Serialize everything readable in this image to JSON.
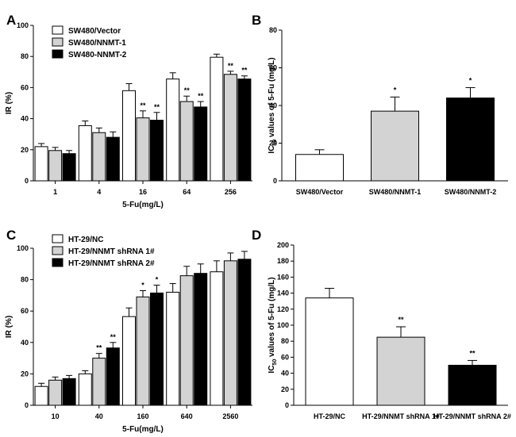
{
  "chart_data": [
    {
      "panel": "A",
      "type": "bar",
      "xlabel": "5-Fu(mg/L)",
      "ylabel": "IR (%)",
      "ylim": [
        0,
        100
      ],
      "yticks": [
        "0",
        "20",
        "40",
        "60",
        "80",
        "100"
      ],
      "categories": [
        "1",
        "4",
        "16",
        "64",
        "256"
      ],
      "legend_position": "top-left",
      "series": [
        {
          "name": "SW480/Vector",
          "color": "#ffffff",
          "values": [
            22,
            35.5,
            58,
            65.5,
            79.5
          ],
          "errors": [
            2,
            3,
            4.5,
            4,
            2
          ],
          "sig": [
            "",
            "",
            "",
            "",
            ""
          ]
        },
        {
          "name": "SW480/NNMT-1",
          "color": "#d3d3d3",
          "values": [
            19.5,
            31,
            40.5,
            51,
            68.5
          ],
          "errors": [
            2,
            3,
            4.5,
            3.5,
            2
          ],
          "sig": [
            "",
            "",
            "**",
            "**",
            "**"
          ]
        },
        {
          "name": "SW480-NNMT-2",
          "color": "#000000",
          "values": [
            17.5,
            28,
            39,
            47.5,
            65.5
          ],
          "errors": [
            2,
            3.5,
            5,
            3.5,
            2
          ],
          "sig": [
            "",
            "",
            "**",
            "**",
            "**"
          ]
        }
      ]
    },
    {
      "panel": "B",
      "type": "bar",
      "xlabel": "",
      "ylabel": "IC50 values of 5-Fu (mg/L)",
      "ylim": [
        0,
        80
      ],
      "yticks": [
        "0",
        "20",
        "40",
        "60",
        "80"
      ],
      "categories": [
        "SW480/Vector",
        "SW480/NNMT-1",
        "SW480/NNMT-2"
      ],
      "colors": [
        "#ffffff",
        "#d3d3d3",
        "#000000"
      ],
      "values": [
        14,
        37,
        44
      ],
      "errors": [
        2.5,
        7.5,
        5.5
      ],
      "sig": [
        "",
        "*",
        "*"
      ]
    },
    {
      "panel": "C",
      "type": "bar",
      "xlabel": "5-Fu(mg/L)",
      "ylabel": "IR (%)",
      "ylim": [
        0,
        100
      ],
      "yticks": [
        "0",
        "20",
        "40",
        "60",
        "80",
        "100"
      ],
      "categories": [
        "10",
        "40",
        "160",
        "640",
        "2560"
      ],
      "legend_position": "top-left",
      "series": [
        {
          "name": "HT-29/NC",
          "color": "#ffffff",
          "values": [
            12,
            20,
            56.5,
            72,
            85
          ],
          "errors": [
            2,
            2,
            5.5,
            5.5,
            7
          ],
          "sig": [
            "",
            "",
            "",
            "",
            ""
          ]
        },
        {
          "name": "HT-29/NNMT shRNA 1#",
          "color": "#d3d3d3",
          "values": [
            16,
            30,
            69,
            82.5,
            92
          ],
          "errors": [
            2,
            3,
            4,
            6,
            5
          ],
          "sig": [
            "",
            "**",
            "*",
            "",
            ""
          ]
        },
        {
          "name": "HT-29/NNMT shRNA 2#",
          "color": "#000000",
          "values": [
            17,
            36.5,
            71.5,
            84,
            93
          ],
          "errors": [
            2,
            3.5,
            5,
            6,
            5
          ],
          "sig": [
            "",
            "**",
            "*",
            "",
            ""
          ]
        }
      ]
    },
    {
      "panel": "D",
      "type": "bar",
      "xlabel": "",
      "ylabel": "IC50 values of 5-Fu (mg/L)",
      "ylim": [
        0,
        200
      ],
      "yticks": [
        "0",
        "20",
        "40",
        "60",
        "80",
        "100",
        "120",
        "140",
        "160",
        "180",
        "200"
      ],
      "categories": [
        "HT-29/NC",
        "HT-29/NNMT shRNA 1#",
        "HT-29/NNMT shRNA 2#"
      ],
      "colors": [
        "#ffffff",
        "#d3d3d3",
        "#000000"
      ],
      "values": [
        134,
        85,
        50
      ],
      "errors": [
        12,
        13,
        6
      ],
      "sig": [
        "",
        "**",
        "**"
      ]
    }
  ]
}
